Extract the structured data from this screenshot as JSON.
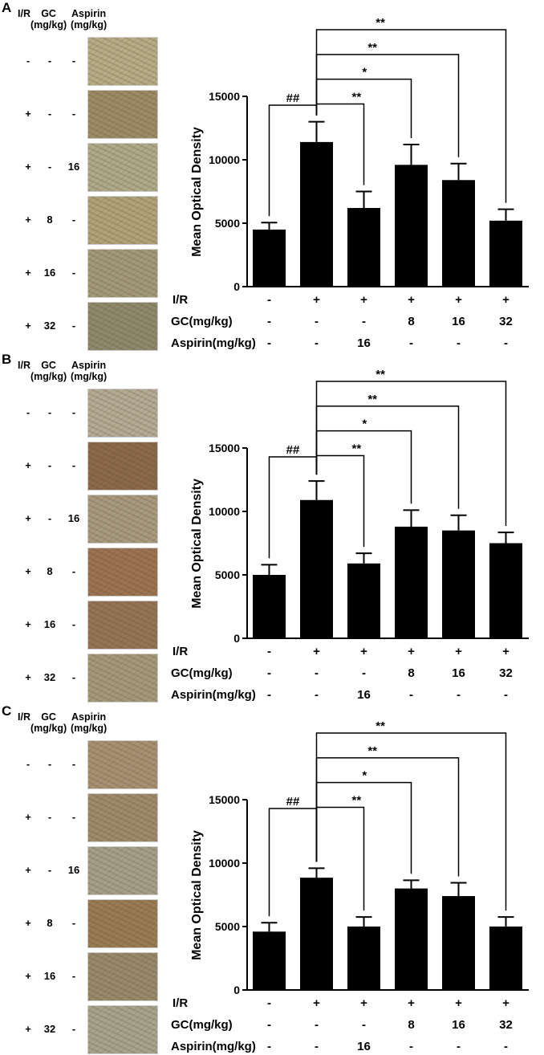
{
  "chart_data": [
    {
      "panel": "A",
      "type": "bar",
      "ylabel": "Mean Optical Density",
      "ylim": [
        0,
        15000
      ],
      "yticks": [
        0,
        5000,
        10000,
        15000
      ],
      "values": [
        4500,
        11400,
        6200,
        9600,
        8400,
        5200
      ],
      "errors": [
        550,
        1600,
        1300,
        1600,
        1300,
        900
      ],
      "categories": {
        "ir": [
          "-",
          "+",
          "+",
          "+",
          "+",
          "+"
        ],
        "gc": [
          "-",
          "-",
          "-",
          "8",
          "16",
          "32"
        ],
        "aspirin": [
          "-",
          "-",
          "16",
          "-",
          "-",
          "-"
        ]
      },
      "row_labels": {
        "ir": "I/R",
        "gc": "GC(mg/kg)",
        "aspirin": "Aspirin(mg/kg)"
      },
      "image_headers": {
        "ir": "I/R",
        "gc": "GC\n(mg/kg)",
        "aspirin": "Aspirin\n(mg/kg)"
      },
      "image_rows": [
        {
          "ir": "-",
          "gc": "-",
          "aspirin": "-",
          "tone": "#b7ad87"
        },
        {
          "ir": "+",
          "gc": "-",
          "aspirin": "-",
          "tone": "#9d8c65"
        },
        {
          "ir": "+",
          "gc": "-",
          "aspirin": "16",
          "tone": "#b0ab8a"
        },
        {
          "ir": "+",
          "gc": "8",
          "aspirin": "-",
          "tone": "#b1a47a"
        },
        {
          "ir": "+",
          "gc": "16",
          "aspirin": "-",
          "tone": "#a39a78"
        },
        {
          "ir": "+",
          "gc": "32",
          "aspirin": "-",
          "tone": "#8f8a6d"
        }
      ],
      "annotations": [
        {
          "from": 0,
          "to": 1,
          "label": "##"
        },
        {
          "from": 1,
          "to": 2,
          "label": "**"
        },
        {
          "from": 1,
          "to": 3,
          "label": "*"
        },
        {
          "from": 1,
          "to": 4,
          "label": "**"
        },
        {
          "from": 1,
          "to": 5,
          "label": "**"
        }
      ]
    },
    {
      "panel": "B",
      "type": "bar",
      "ylabel": "Mean Optical Density",
      "ylim": [
        0,
        15000
      ],
      "yticks": [
        0,
        5000,
        10000,
        15000
      ],
      "values": [
        5000,
        10900,
        5900,
        8800,
        8500,
        7500
      ],
      "errors": [
        800,
        1500,
        800,
        1300,
        1200,
        850
      ],
      "categories": {
        "ir": [
          "-",
          "+",
          "+",
          "+",
          "+",
          "+"
        ],
        "gc": [
          "-",
          "-",
          "-",
          "8",
          "16",
          "32"
        ],
        "aspirin": [
          "-",
          "-",
          "16",
          "-",
          "-",
          "-"
        ]
      },
      "row_labels": {
        "ir": "I/R",
        "gc": "GC(mg/kg)",
        "aspirin": "Aspirin(mg/kg)"
      },
      "image_headers": {
        "ir": "I/R",
        "gc": "GC\n(mg/kg)",
        "aspirin": "Aspirin\n(mg/kg)"
      },
      "image_rows": [
        {
          "ir": "-",
          "gc": "-",
          "aspirin": "-",
          "tone": "#b5ac95"
        },
        {
          "ir": "+",
          "gc": "-",
          "aspirin": "-",
          "tone": "#8a6a4a"
        },
        {
          "ir": "+",
          "gc": "-",
          "aspirin": "16",
          "tone": "#a99b80"
        },
        {
          "ir": "+",
          "gc": "8",
          "aspirin": "-",
          "tone": "#9c7452"
        },
        {
          "ir": "+",
          "gc": "16",
          "aspirin": "-",
          "tone": "#957556"
        },
        {
          "ir": "+",
          "gc": "32",
          "aspirin": "-",
          "tone": "#a49a7a"
        }
      ],
      "annotations": [
        {
          "from": 0,
          "to": 1,
          "label": "##"
        },
        {
          "from": 1,
          "to": 2,
          "label": "**"
        },
        {
          "from": 1,
          "to": 3,
          "label": "*"
        },
        {
          "from": 1,
          "to": 4,
          "label": "**"
        },
        {
          "from": 1,
          "to": 5,
          "label": "**"
        }
      ]
    },
    {
      "panel": "C",
      "type": "bar",
      "ylabel": "Mean Optical Density",
      "ylim": [
        0,
        15000
      ],
      "yticks": [
        0,
        5000,
        10000,
        15000
      ],
      "values": [
        4600,
        8850,
        5000,
        8000,
        7400,
        5000
      ],
      "errors": [
        700,
        750,
        750,
        650,
        1050,
        750
      ],
      "categories": {
        "ir": [
          "-",
          "+",
          "+",
          "+",
          "+",
          "+"
        ],
        "gc": [
          "-",
          "-",
          "-",
          "8",
          "16",
          "32"
        ],
        "aspirin": [
          "-",
          "-",
          "16",
          "-",
          "-",
          "-"
        ]
      },
      "row_labels": {
        "ir": "I/R",
        "gc": "GC(mg/kg)",
        "aspirin": "Aspirin(mg/kg)"
      },
      "image_headers": {
        "ir": "I/R",
        "gc": "GC\n(mg/kg)",
        "aspirin": "Aspirin\n(mg/kg)"
      },
      "image_rows": [
        {
          "ir": "-",
          "gc": "-",
          "aspirin": "-",
          "tone": "#a89173"
        },
        {
          "ir": "+",
          "gc": "-",
          "aspirin": "-",
          "tone": "#a08b6c"
        },
        {
          "ir": "+",
          "gc": "-",
          "aspirin": "16",
          "tone": "#a6a08b"
        },
        {
          "ir": "+",
          "gc": "8",
          "aspirin": "-",
          "tone": "#9a7d55"
        },
        {
          "ir": "+",
          "gc": "16",
          "aspirin": "-",
          "tone": "#988a6a"
        },
        {
          "ir": "+",
          "gc": "32",
          "aspirin": "-",
          "tone": "#a8a58e"
        }
      ],
      "annotations": [
        {
          "from": 0,
          "to": 1,
          "label": "##"
        },
        {
          "from": 1,
          "to": 2,
          "label": "**"
        },
        {
          "from": 1,
          "to": 3,
          "label": "*"
        },
        {
          "from": 1,
          "to": 4,
          "label": "**"
        },
        {
          "from": 1,
          "to": 5,
          "label": "**"
        }
      ]
    }
  ]
}
